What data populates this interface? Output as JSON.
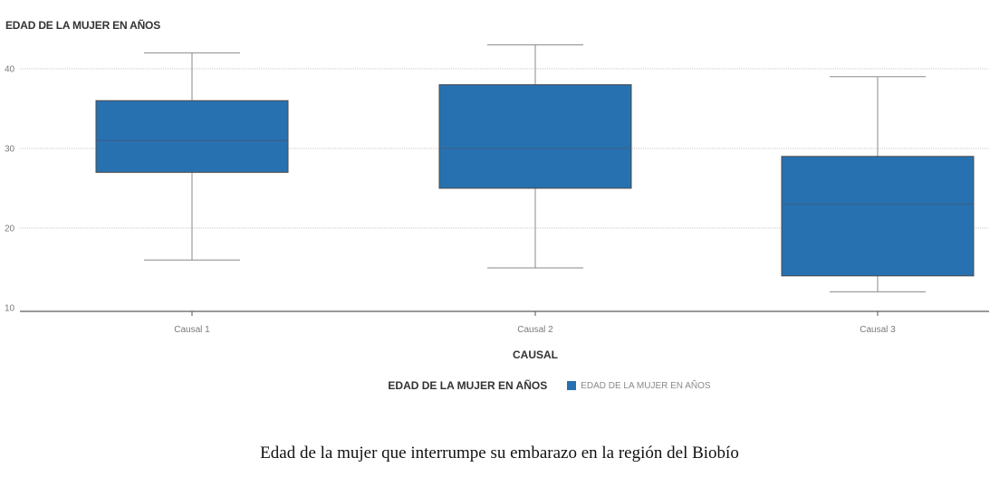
{
  "chart_data": {
    "type": "boxplot",
    "ylabel": "EDAD DE LA MUJER EN AÑOS",
    "xlabel": "CAUSAL",
    "categories": [
      "Causal 1",
      "Causal 2",
      "Causal 3"
    ],
    "series": [
      {
        "name": "EDAD DE LA MUJER EN AÑOS",
        "color": "#2771b0",
        "boxes": [
          {
            "min": 16,
            "q1": 27,
            "median": 31,
            "q3": 36,
            "max": 42
          },
          {
            "min": 15,
            "q1": 25,
            "median": 30,
            "q3": 38,
            "max": 43
          },
          {
            "min": 12,
            "q1": 14,
            "median": 23,
            "q3": 29,
            "max": 39
          }
        ]
      }
    ],
    "yticks": [
      10,
      20,
      30,
      40
    ],
    "ylim": [
      10,
      40
    ],
    "grid": true,
    "legend_position": "bottom",
    "legend_title": "EDAD DE LA MUJER EN AÑOS"
  },
  "caption": "Edad de la mujer que interrumpe su embarazo en la región del Biobío"
}
